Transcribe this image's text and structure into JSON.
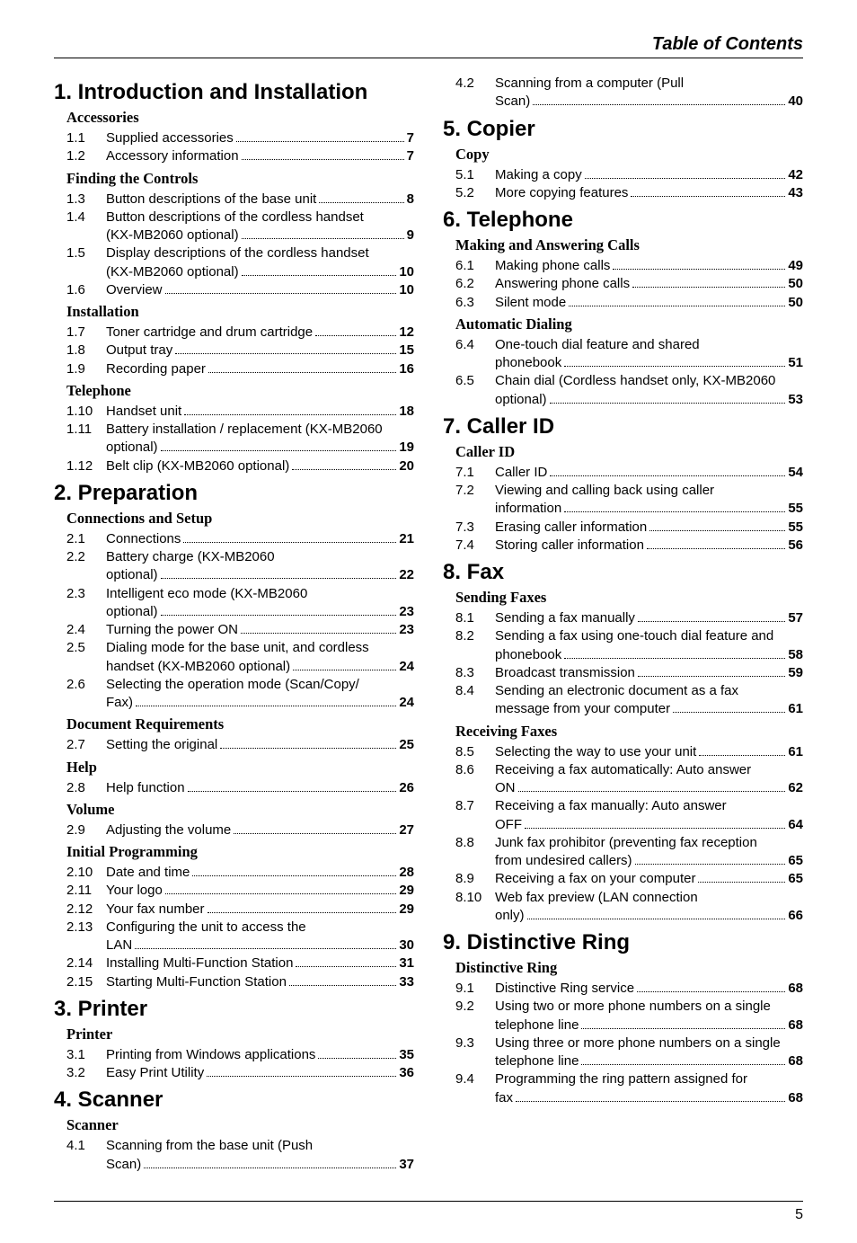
{
  "header": "Table of Contents",
  "page_number": "5",
  "left": [
    {
      "type": "chapter",
      "text": "1.  Introduction and Installation"
    },
    {
      "type": "section",
      "text": "Accessories"
    },
    {
      "type": "entry",
      "num": "1.1",
      "lines": [
        [
          "Supplied accessories ",
          "7"
        ]
      ]
    },
    {
      "type": "entry",
      "num": "1.2",
      "lines": [
        [
          "Accessory information ",
          "7"
        ]
      ]
    },
    {
      "type": "section",
      "text": "Finding the Controls"
    },
    {
      "type": "entry",
      "num": "1.3",
      "lines": [
        [
          "Button descriptions of the base unit ",
          "8"
        ]
      ]
    },
    {
      "type": "entry",
      "num": "1.4",
      "lines": [
        [
          "Button descriptions of the cordless handset",
          null
        ],
        [
          "(KX-MB2060 optional) ",
          "9"
        ]
      ]
    },
    {
      "type": "entry",
      "num": "1.5",
      "lines": [
        [
          "Display descriptions of the cordless handset",
          null
        ],
        [
          "(KX-MB2060 optional) ",
          "10"
        ]
      ]
    },
    {
      "type": "entry",
      "num": "1.6",
      "lines": [
        [
          "Overview ",
          "10"
        ]
      ]
    },
    {
      "type": "section",
      "text": "Installation"
    },
    {
      "type": "entry",
      "num": "1.7",
      "lines": [
        [
          "Toner cartridge and drum cartridge ",
          "12"
        ]
      ]
    },
    {
      "type": "entry",
      "num": "1.8",
      "lines": [
        [
          "Output tray ",
          "15"
        ]
      ]
    },
    {
      "type": "entry",
      "num": "1.9",
      "lines": [
        [
          "Recording paper ",
          "16"
        ]
      ]
    },
    {
      "type": "section",
      "text": "Telephone"
    },
    {
      "type": "entry",
      "num": "1.10",
      "lines": [
        [
          "Handset unit ",
          "18"
        ]
      ]
    },
    {
      "type": "entry",
      "num": "1.11",
      "lines": [
        [
          "Battery installation / replacement (KX-MB2060",
          null
        ],
        [
          "optional) ",
          "19"
        ]
      ]
    },
    {
      "type": "entry",
      "num": "1.12",
      "lines": [
        [
          "Belt clip (KX-MB2060 optional) ",
          "20"
        ]
      ]
    },
    {
      "type": "chapter",
      "text": "2.  Preparation"
    },
    {
      "type": "section",
      "text": "Connections and Setup"
    },
    {
      "type": "entry",
      "num": "2.1",
      "lines": [
        [
          "Connections ",
          "21"
        ]
      ]
    },
    {
      "type": "entry",
      "num": "2.2",
      "lines": [
        [
          "Battery charge (KX-MB2060",
          null
        ],
        [
          "optional) ",
          "22"
        ]
      ]
    },
    {
      "type": "entry",
      "num": "2.3",
      "lines": [
        [
          "Intelligent eco mode (KX-MB2060",
          null
        ],
        [
          "optional) ",
          "23"
        ]
      ]
    },
    {
      "type": "entry",
      "num": "2.4",
      "lines": [
        [
          "Turning the power ON ",
          "23"
        ]
      ]
    },
    {
      "type": "entry",
      "num": "2.5",
      "lines": [
        [
          "Dialing mode for the base unit, and cordless",
          null
        ],
        [
          "handset (KX-MB2060 optional) ",
          "24"
        ]
      ]
    },
    {
      "type": "entry",
      "num": "2.6",
      "lines": [
        [
          "Selecting the operation mode (Scan/Copy/",
          null
        ],
        [
          "Fax) ",
          "24"
        ]
      ]
    },
    {
      "type": "section",
      "text": "Document Requirements"
    },
    {
      "type": "entry",
      "num": "2.7",
      "lines": [
        [
          "Setting the original ",
          "25"
        ]
      ]
    },
    {
      "type": "section",
      "text": "Help"
    },
    {
      "type": "entry",
      "num": "2.8",
      "lines": [
        [
          "Help function ",
          "26"
        ]
      ]
    },
    {
      "type": "section",
      "text": "Volume"
    },
    {
      "type": "entry",
      "num": "2.9",
      "lines": [
        [
          "Adjusting the volume ",
          "27"
        ]
      ]
    },
    {
      "type": "section",
      "text": "Initial Programming"
    },
    {
      "type": "entry",
      "num": "2.10",
      "lines": [
        [
          "Date and time ",
          "28"
        ]
      ]
    },
    {
      "type": "entry",
      "num": "2.11",
      "lines": [
        [
          "Your logo ",
          "29"
        ]
      ]
    },
    {
      "type": "entry",
      "num": "2.12",
      "lines": [
        [
          "Your fax number ",
          "29"
        ]
      ]
    },
    {
      "type": "entry",
      "num": "2.13",
      "lines": [
        [
          "Configuring the unit to access the",
          null
        ],
        [
          "LAN ",
          "30"
        ]
      ]
    },
    {
      "type": "entry",
      "num": "2.14",
      "lines": [
        [
          "Installing Multi-Function Station ",
          "31"
        ]
      ]
    },
    {
      "type": "entry",
      "num": "2.15",
      "lines": [
        [
          "Starting Multi-Function Station ",
          "33"
        ]
      ]
    },
    {
      "type": "chapter",
      "text": "3.  Printer"
    },
    {
      "type": "section",
      "text": "Printer"
    },
    {
      "type": "entry",
      "num": "3.1",
      "lines": [
        [
          "Printing from Windows applications ",
          "35"
        ]
      ]
    },
    {
      "type": "entry",
      "num": "3.2",
      "lines": [
        [
          "Easy Print Utility ",
          "36"
        ]
      ]
    },
    {
      "type": "chapter",
      "text": "4.  Scanner"
    },
    {
      "type": "section",
      "text": "Scanner"
    },
    {
      "type": "entry",
      "num": "4.1",
      "lines": [
        [
          "Scanning from the base unit (Push",
          null
        ],
        [
          "Scan) ",
          "37"
        ]
      ]
    }
  ],
  "right": [
    {
      "type": "entry",
      "num": "4.2",
      "lines": [
        [
          "Scanning from a computer (Pull",
          null
        ],
        [
          "Scan) ",
          "40"
        ]
      ]
    },
    {
      "type": "chapter",
      "text": "5.  Copier"
    },
    {
      "type": "section",
      "text": "Copy"
    },
    {
      "type": "entry",
      "num": "5.1",
      "lines": [
        [
          "Making a copy ",
          "42"
        ]
      ]
    },
    {
      "type": "entry",
      "num": "5.2",
      "lines": [
        [
          "More copying features ",
          "43"
        ]
      ]
    },
    {
      "type": "chapter",
      "text": "6.  Telephone"
    },
    {
      "type": "section",
      "text": "Making and Answering Calls"
    },
    {
      "type": "entry",
      "num": "6.1",
      "lines": [
        [
          "Making phone calls ",
          "49"
        ]
      ]
    },
    {
      "type": "entry",
      "num": "6.2",
      "lines": [
        [
          "Answering phone calls ",
          "50"
        ]
      ]
    },
    {
      "type": "entry",
      "num": "6.3",
      "lines": [
        [
          "Silent mode ",
          "50"
        ]
      ]
    },
    {
      "type": "section",
      "text": "Automatic Dialing"
    },
    {
      "type": "entry",
      "num": "6.4",
      "lines": [
        [
          "One-touch dial feature and shared",
          null
        ],
        [
          "phonebook ",
          "51"
        ]
      ]
    },
    {
      "type": "entry",
      "num": "6.5",
      "lines": [
        [
          "Chain dial (Cordless handset only, KX-MB2060",
          null
        ],
        [
          "optional) ",
          "53"
        ]
      ]
    },
    {
      "type": "chapter",
      "text": "7.  Caller ID"
    },
    {
      "type": "section",
      "text": "Caller ID"
    },
    {
      "type": "entry",
      "num": "7.1",
      "lines": [
        [
          "Caller ID ",
          "54"
        ]
      ]
    },
    {
      "type": "entry",
      "num": "7.2",
      "lines": [
        [
          "Viewing and calling back using caller",
          null
        ],
        [
          "information ",
          "55"
        ]
      ]
    },
    {
      "type": "entry",
      "num": "7.3",
      "lines": [
        [
          "Erasing caller information ",
          "55"
        ]
      ]
    },
    {
      "type": "entry",
      "num": "7.4",
      "lines": [
        [
          "Storing caller information ",
          "56"
        ]
      ]
    },
    {
      "type": "chapter",
      "text": "8.  Fax"
    },
    {
      "type": "section",
      "text": "Sending Faxes"
    },
    {
      "type": "entry",
      "num": "8.1",
      "lines": [
        [
          "Sending a fax manually ",
          "57"
        ]
      ]
    },
    {
      "type": "entry",
      "num": "8.2",
      "lines": [
        [
          "Sending a fax using one-touch dial feature and",
          null
        ],
        [
          "phonebook ",
          "58"
        ]
      ]
    },
    {
      "type": "entry",
      "num": "8.3",
      "lines": [
        [
          "Broadcast transmission ",
          "59"
        ]
      ]
    },
    {
      "type": "entry",
      "num": "8.4",
      "lines": [
        [
          "Sending an electronic document as a fax",
          null
        ],
        [
          "message from your computer ",
          "61"
        ]
      ]
    },
    {
      "type": "section",
      "text": "Receiving Faxes"
    },
    {
      "type": "entry",
      "num": "8.5",
      "lines": [
        [
          "Selecting the way to use your unit ",
          "61"
        ]
      ]
    },
    {
      "type": "entry",
      "num": "8.6",
      "lines": [
        [
          "Receiving a fax automatically: Auto answer",
          null
        ],
        [
          "ON ",
          "62"
        ]
      ]
    },
    {
      "type": "entry",
      "num": "8.7",
      "lines": [
        [
          "Receiving a fax manually: Auto answer",
          null
        ],
        [
          "OFF ",
          "64"
        ]
      ]
    },
    {
      "type": "entry",
      "num": "8.8",
      "lines": [
        [
          "Junk fax prohibitor (preventing fax reception",
          null
        ],
        [
          "from undesired callers) ",
          "65"
        ]
      ]
    },
    {
      "type": "entry",
      "num": "8.9",
      "lines": [
        [
          "Receiving a fax on your computer ",
          "65"
        ]
      ]
    },
    {
      "type": "entry",
      "num": "8.10",
      "lines": [
        [
          "Web fax preview (LAN connection",
          null
        ],
        [
          "only) ",
          "66"
        ]
      ]
    },
    {
      "type": "chapter",
      "text": "9.  Distinctive Ring"
    },
    {
      "type": "section",
      "text": "Distinctive Ring"
    },
    {
      "type": "entry",
      "num": "9.1",
      "lines": [
        [
          "Distinctive Ring service ",
          "68"
        ]
      ]
    },
    {
      "type": "entry",
      "num": "9.2",
      "lines": [
        [
          "Using two or more phone numbers on a single",
          null
        ],
        [
          "telephone line ",
          "68"
        ]
      ]
    },
    {
      "type": "entry",
      "num": "9.3",
      "lines": [
        [
          "Using three or more phone numbers on a single",
          null
        ],
        [
          "telephone line ",
          "68"
        ]
      ]
    },
    {
      "type": "entry",
      "num": "9.4",
      "lines": [
        [
          "Programming the ring pattern assigned for",
          null
        ],
        [
          "fax ",
          "68"
        ]
      ]
    }
  ]
}
